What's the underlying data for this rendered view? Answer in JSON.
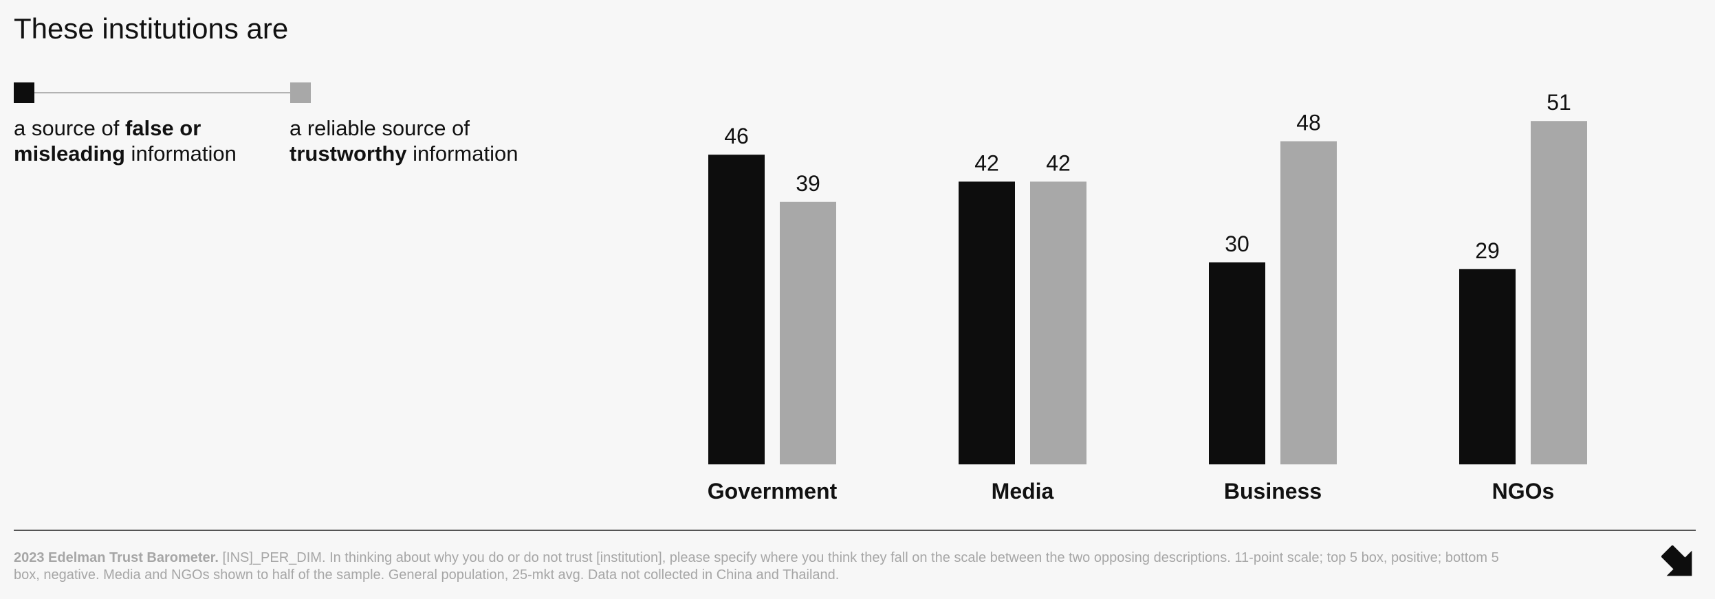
{
  "title": "These institutions are",
  "legend": {
    "left": {
      "pre": "a source of ",
      "bold1": "false or",
      "bold2": "misleading",
      "post": " information",
      "color": "#0d0d0d"
    },
    "right": {
      "pre": "a reliable source of",
      "bold": "trustworthy",
      "post": " information",
      "color": "#a8a8a8"
    }
  },
  "chart_data": {
    "type": "bar",
    "categories": [
      "Government",
      "Media",
      "Business",
      "NGOs"
    ],
    "series": [
      {
        "name": "a source of false or misleading information",
        "values": [
          46,
          42,
          30,
          29
        ],
        "color": "#0d0d0d"
      },
      {
        "name": "a reliable source of trustworthy information",
        "values": [
          39,
          42,
          48,
          51
        ],
        "color": "#a8a8a8"
      }
    ],
    "title": "These institutions are",
    "xlabel": "",
    "ylabel": "",
    "grid": false
  },
  "footnote": {
    "bold": "2023 Edelman Trust Barometer.",
    "text": " [INS]_PER_DIM. In thinking about why you do or do not trust [institution], please specify where you think they fall on the scale between the two opposing descriptions. 11-point scale; top 5 box, positive; bottom 5 box, negative. Media and NGOs shown to half of the sample. General population, 25-mkt avg. Data not collected in China and Thailand."
  },
  "icons": {
    "corner": "arrow-down-right-icon"
  }
}
